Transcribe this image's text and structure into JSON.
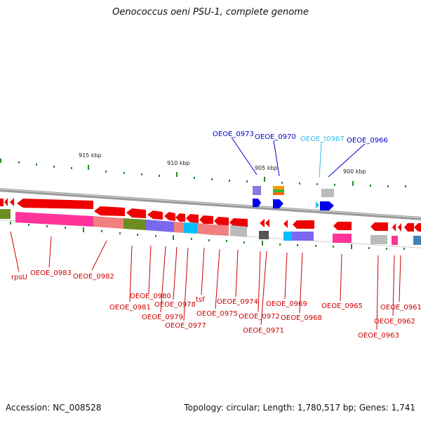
{
  "title": "Oenococcus oeni PSU-1, complete genome",
  "footer": {
    "accession": "Accession: NC_008528",
    "summary": "Topology: circular; Length: 1,780,517 bp; Genes: 1,741"
  },
  "ruler": {
    "labels": [
      "915 kbp",
      "910 kbp",
      "905 kbp",
      "900 kbp"
    ]
  },
  "genes": {
    "top": [
      {
        "label": "OEOE_0973",
        "color": "#0000cc"
      },
      {
        "label": "OEOE_0970",
        "color": "#0000cc"
      },
      {
        "label": "OEOE_t0967",
        "color": "#33bbee"
      },
      {
        "label": "OEOE_0966",
        "color": "#0000cc"
      }
    ],
    "bottom": [
      {
        "label": "rpsU"
      },
      {
        "label": "OEOE_0983"
      },
      {
        "label": "OEOE_0982"
      },
      {
        "label": "OEOE_0981"
      },
      {
        "label": "OEOE_0980"
      },
      {
        "label": "OEOE_0979"
      },
      {
        "label": "OEOE_0978"
      },
      {
        "label": "OEOE_0977"
      },
      {
        "label": "tsf"
      },
      {
        "label": "OEOE_0975"
      },
      {
        "label": "OEOE_0974"
      },
      {
        "label": "OEOE_0972"
      },
      {
        "label": "OEOE_0971"
      },
      {
        "label": "OEOE_0969"
      },
      {
        "label": "OEOE_0968"
      },
      {
        "label": "OEOE_0965"
      },
      {
        "label": "OEOE_0963"
      },
      {
        "label": "OEOE_0962"
      },
      {
        "label": "OEOE_0961"
      }
    ],
    "bottom_color": "#cc0000"
  }
}
